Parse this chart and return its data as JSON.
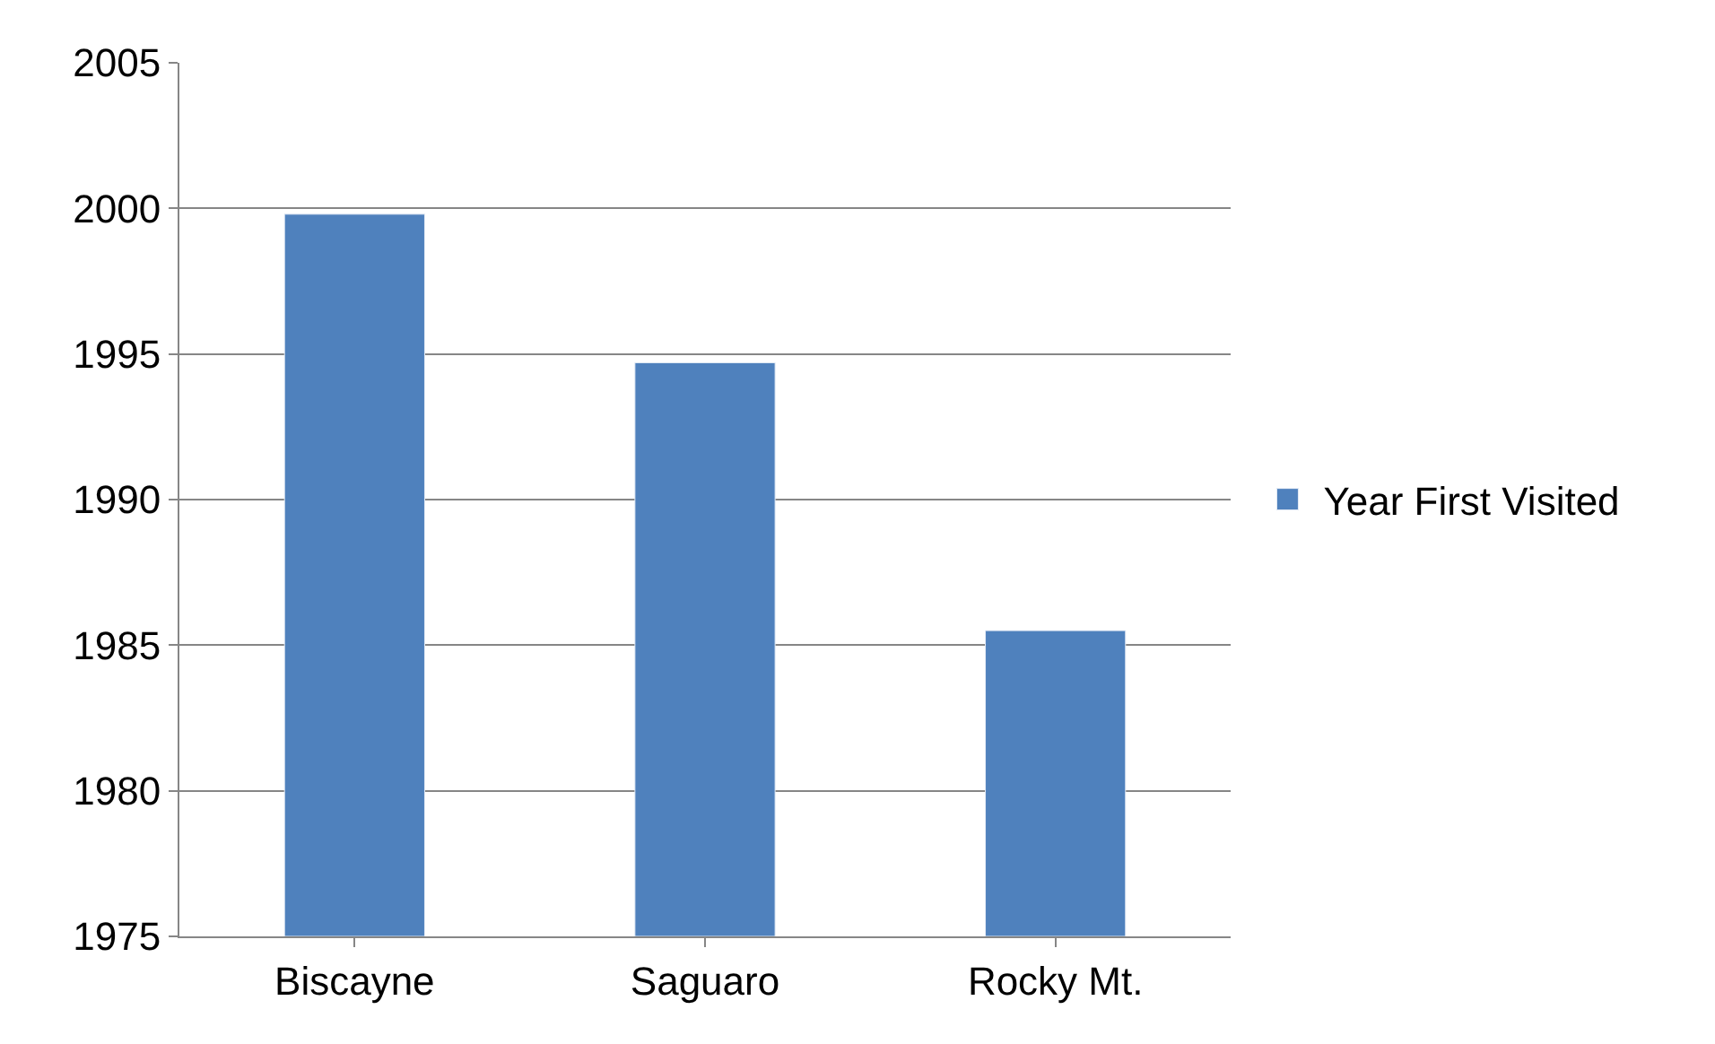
{
  "chart_data": {
    "type": "bar",
    "categories": [
      "Biscayne",
      "Saguaro",
      "Rocky Mt."
    ],
    "series": [
      {
        "name": "Year First Visited",
        "color": "#4f81bd",
        "values": [
          1999.8,
          1994.7,
          1985.5
        ]
      }
    ],
    "ylim": [
      1975,
      2005
    ],
    "yticks": [
      1975,
      1980,
      1985,
      1990,
      1995,
      2000,
      2005
    ],
    "grid": "y",
    "legend": "right"
  }
}
